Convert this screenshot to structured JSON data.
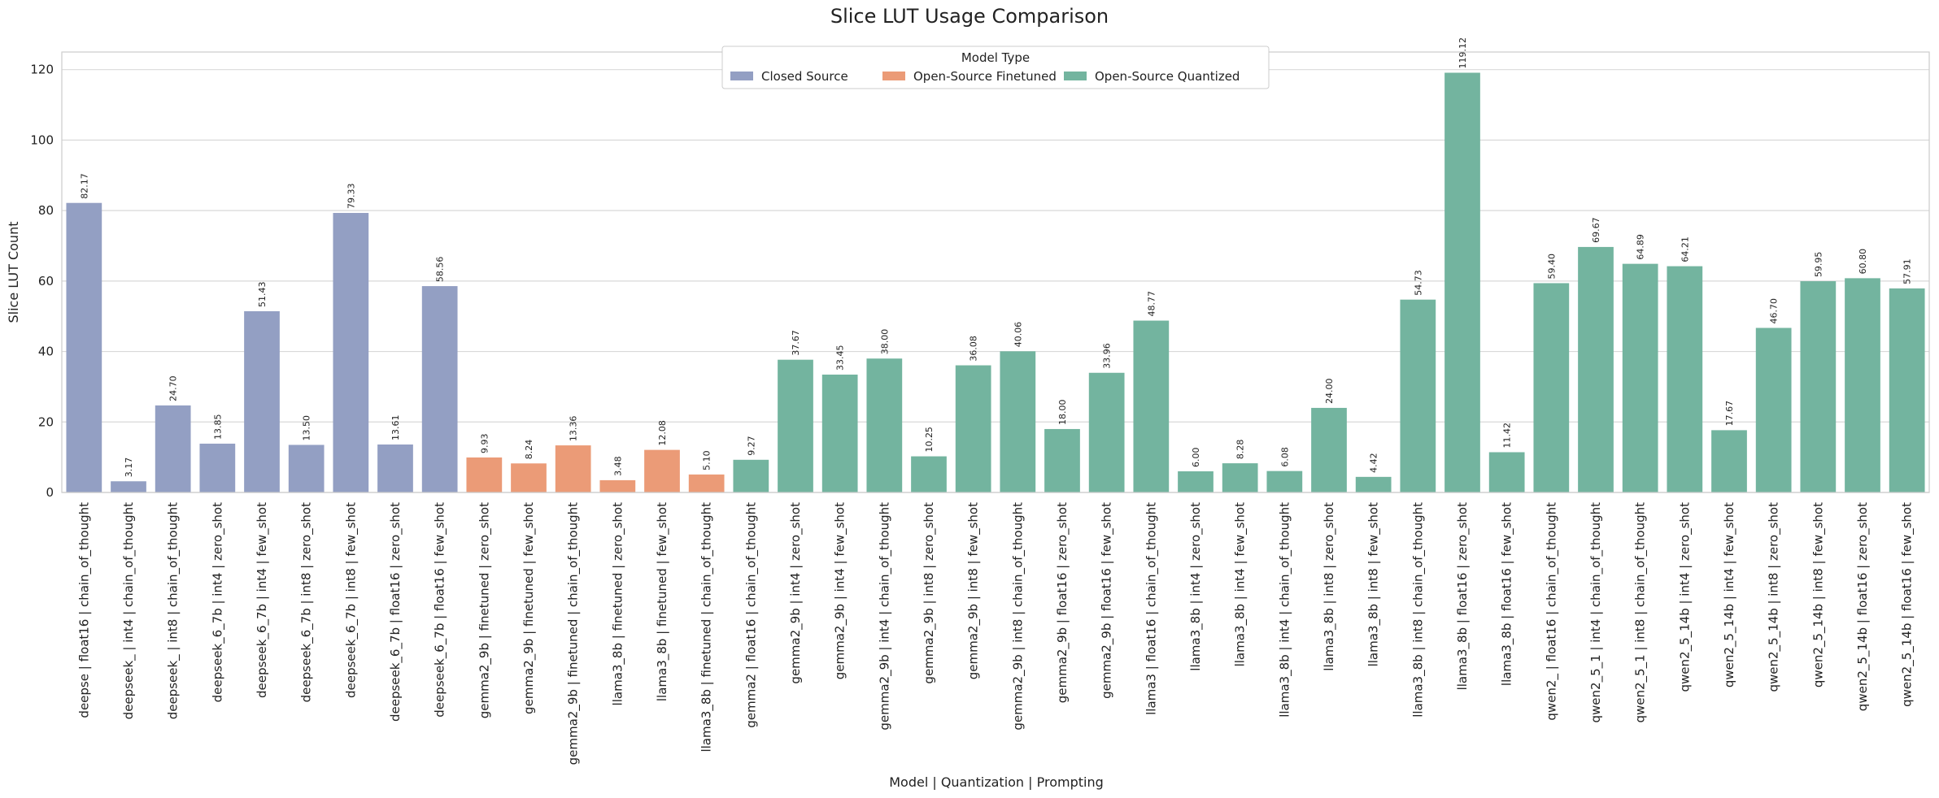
{
  "chart_data": {
    "type": "bar",
    "title": "Slice LUT Usage Comparison",
    "xlabel": "Model | Quantization | Prompting",
    "ylabel": "Slice LUT Count",
    "ylim": [
      0,
      125
    ],
    "yticks": [
      0,
      20,
      40,
      60,
      80,
      100,
      120
    ],
    "grid": "horizontal",
    "legend": {
      "title": "Model Type",
      "placement": "top-center",
      "entries": [
        {
          "name": "Closed Source",
          "color": "#939FC3"
        },
        {
          "name": "Open-Source Finetuned",
          "color": "#EB9B77"
        },
        {
          "name": "Open-Source Quantized",
          "color": "#73B49F"
        }
      ]
    },
    "bars": [
      {
        "label": "deepse | float16 | chain_of_thought",
        "value": 82.17,
        "value_label": "82.17",
        "group": "Closed Source"
      },
      {
        "label": "deepseek_ | int4 | chain_of_thought",
        "value": 3.17,
        "value_label": "3.17",
        "group": "Closed Source"
      },
      {
        "label": "deepseek_ | int8 | chain_of_thought",
        "value": 24.7,
        "value_label": "24.70",
        "group": "Closed Source"
      },
      {
        "label": "deepseek_6_7b | int4 | zero_shot",
        "value": 13.85,
        "value_label": "13.85",
        "group": "Closed Source"
      },
      {
        "label": "deepseek_6_7b | int4 | few_shot",
        "value": 51.43,
        "value_label": "51.43",
        "group": "Closed Source"
      },
      {
        "label": "deepseek_6_7b | int8 | zero_shot",
        "value": 13.5,
        "value_label": "13.50",
        "group": "Closed Source"
      },
      {
        "label": "deepseek_6_7b | int8 | few_shot",
        "value": 79.33,
        "value_label": "79.33",
        "group": "Closed Source"
      },
      {
        "label": "deepseek_6_7b | float16 | zero_shot",
        "value": 13.61,
        "value_label": "13.61",
        "group": "Closed Source"
      },
      {
        "label": "deepseek_6_7b | float16 | few_shot",
        "value": 58.56,
        "value_label": "58.56",
        "group": "Closed Source"
      },
      {
        "label": "gemma2_9b | finetuned | zero_shot",
        "value": 9.93,
        "value_label": "9.93",
        "group": "Open-Source Finetuned"
      },
      {
        "label": "gemma2_9b | finetuned | few_shot",
        "value": 8.24,
        "value_label": "8.24",
        "group": "Open-Source Finetuned"
      },
      {
        "label": "gemma2_9b | finetuned | chain_of_thought",
        "value": 13.36,
        "value_label": "13.36",
        "group": "Open-Source Finetuned"
      },
      {
        "label": "llama3_8b | finetuned | zero_shot",
        "value": 3.48,
        "value_label": "3.48",
        "group": "Open-Source Finetuned"
      },
      {
        "label": "llama3_8b | finetuned | few_shot",
        "value": 12.08,
        "value_label": "12.08",
        "group": "Open-Source Finetuned"
      },
      {
        "label": "llama3_8b | finetuned | chain_of_thought",
        "value": 5.1,
        "value_label": "5.10",
        "group": "Open-Source Finetuned"
      },
      {
        "label": "gemma2 | float16 | chain_of_thought",
        "value": 9.27,
        "value_label": "9.27",
        "group": "Open-Source Quantized"
      },
      {
        "label": "gemma2_9b | int4 | zero_shot",
        "value": 37.67,
        "value_label": "37.67",
        "group": "Open-Source Quantized"
      },
      {
        "label": "gemma2_9b | int4 | few_shot",
        "value": 33.45,
        "value_label": "33.45",
        "group": "Open-Source Quantized"
      },
      {
        "label": "gemma2_9b | int4 | chain_of_thought",
        "value": 38.0,
        "value_label": "38.00",
        "group": "Open-Source Quantized"
      },
      {
        "label": "gemma2_9b | int8 | zero_shot",
        "value": 10.25,
        "value_label": "10.25",
        "group": "Open-Source Quantized"
      },
      {
        "label": "gemma2_9b | int8 | few_shot",
        "value": 36.08,
        "value_label": "36.08",
        "group": "Open-Source Quantized"
      },
      {
        "label": "gemma2_9b | int8 | chain_of_thought",
        "value": 40.06,
        "value_label": "40.06",
        "group": "Open-Source Quantized"
      },
      {
        "label": "gemma2_9b | float16 | zero_shot",
        "value": 18.0,
        "value_label": "18.00",
        "group": "Open-Source Quantized"
      },
      {
        "label": "gemma2_9b | float16 | few_shot",
        "value": 33.96,
        "value_label": "33.96",
        "group": "Open-Source Quantized"
      },
      {
        "label": "llama3 | float16 | chain_of_thought",
        "value": 48.77,
        "value_label": "48.77",
        "group": "Open-Source Quantized"
      },
      {
        "label": "llama3_8b | int4 | zero_shot",
        "value": 6.0,
        "value_label": "6.00",
        "group": "Open-Source Quantized"
      },
      {
        "label": "llama3_8b | int4 | few_shot",
        "value": 8.28,
        "value_label": "8.28",
        "group": "Open-Source Quantized"
      },
      {
        "label": "llama3_8b | int4 | chain_of_thought",
        "value": 6.08,
        "value_label": "6.08",
        "group": "Open-Source Quantized"
      },
      {
        "label": "llama3_8b | int8 | zero_shot",
        "value": 24.0,
        "value_label": "24.00",
        "group": "Open-Source Quantized"
      },
      {
        "label": "llama3_8b | int8 | few_shot",
        "value": 4.42,
        "value_label": "4.42",
        "group": "Open-Source Quantized"
      },
      {
        "label": "llama3_8b | int8 | chain_of_thought",
        "value": 54.73,
        "value_label": "54.73",
        "group": "Open-Source Quantized"
      },
      {
        "label": "llama3_8b | float16 | zero_shot",
        "value": 119.12,
        "value_label": "119.12",
        "group": "Open-Source Quantized"
      },
      {
        "label": "llama3_8b | float16 | few_shot",
        "value": 11.42,
        "value_label": "11.42",
        "group": "Open-Source Quantized"
      },
      {
        "label": "qwen2_ | float16 | chain_of_thought",
        "value": 59.4,
        "value_label": "59.40",
        "group": "Open-Source Quantized"
      },
      {
        "label": "qwen2_5_1 | int4 | chain_of_thought",
        "value": 69.67,
        "value_label": "69.67",
        "group": "Open-Source Quantized"
      },
      {
        "label": "qwen2_5_1 | int8 | chain_of_thought",
        "value": 64.89,
        "value_label": "64.89",
        "group": "Open-Source Quantized"
      },
      {
        "label": "qwen2_5_14b | int4 | zero_shot",
        "value": 64.21,
        "value_label": "64.21",
        "group": "Open-Source Quantized"
      },
      {
        "label": "qwen2_5_14b | int4 | few_shot",
        "value": 17.67,
        "value_label": "17.67",
        "group": "Open-Source Quantized"
      },
      {
        "label": "qwen2_5_14b | int8 | zero_shot",
        "value": 46.7,
        "value_label": "46.70",
        "group": "Open-Source Quantized"
      },
      {
        "label": "qwen2_5_14b | int8 | few_shot",
        "value": 59.95,
        "value_label": "59.95",
        "group": "Open-Source Quantized"
      },
      {
        "label": "qwen2_5_14b | float16 | zero_shot",
        "value": 60.8,
        "value_label": "60.80",
        "group": "Open-Source Quantized"
      },
      {
        "label": "qwen2_5_14b | float16 | few_shot",
        "value": 57.91,
        "value_label": "57.91",
        "group": "Open-Source Quantized"
      }
    ]
  }
}
